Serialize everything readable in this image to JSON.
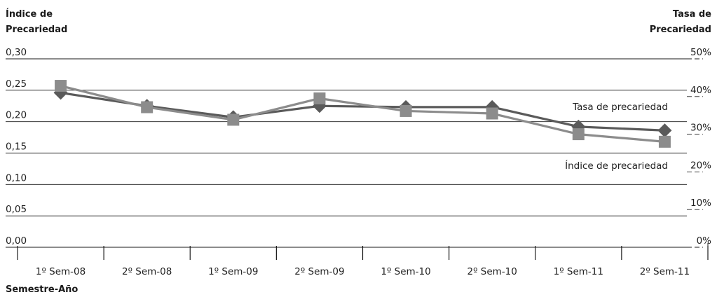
{
  "chart_data": {
    "type": "line",
    "left_axis_title": [
      "Índice de",
      "Precariedad"
    ],
    "right_axis_title": [
      "Tasa de",
      "Precariedad"
    ],
    "xlabel": "Semestre-Año",
    "categories": [
      "1º Sem-08",
      "2º Sem-08",
      "1º Sem-09",
      "2º Sem-09",
      "1º Sem-10",
      "2º Sem-10",
      "1º Sem-11",
      "2º Sem-11"
    ],
    "left_ticks": [
      "0,00",
      "0,05",
      "0,10",
      "0,15",
      "0,20",
      "0,25",
      "0,30"
    ],
    "right_ticks": [
      "0%",
      "10%",
      "20%",
      "30%",
      "40%",
      "50%"
    ],
    "ylim_left": [
      0,
      0.3
    ],
    "ylim_right": [
      0,
      0.5
    ],
    "grid": true,
    "series": [
      {
        "name": "Tasa de precariedad",
        "axis": "right",
        "marker": "diamond",
        "color": "#5a5a5a",
        "values": [
          0.41,
          0.375,
          0.345,
          0.375,
          0.372,
          0.372,
          0.32,
          0.31
        ]
      },
      {
        "name": "Índice de precariedad",
        "axis": "left",
        "marker": "square",
        "color": "#8c8c8c",
        "values": [
          0.257,
          0.223,
          0.203,
          0.237,
          0.217,
          0.213,
          0.18,
          0.168
        ]
      }
    ]
  }
}
